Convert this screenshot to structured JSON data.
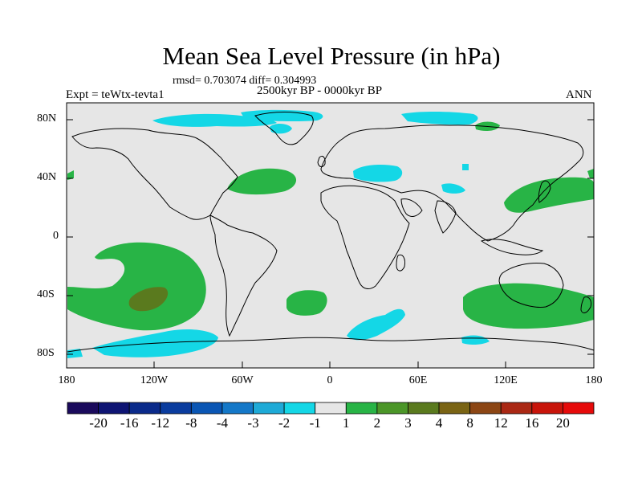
{
  "header": {
    "title": "Mean Sea Level Pressure (in hPa)",
    "stats": "rmsd= 0.703074 diff= 0.304993",
    "period": "2500kyr BP - 0000kyr BP",
    "experiment": "Expt = teWtx-tevta1",
    "season": "ANN"
  },
  "axes": {
    "y_ticks": [
      "80N",
      "40N",
      "0",
      "40S",
      "80S"
    ],
    "x_ticks": [
      "180",
      "120W",
      "60W",
      "0",
      "60E",
      "120E",
      "180"
    ]
  },
  "colorbar": {
    "labels": [
      "-20",
      "-16",
      "-12",
      "-8",
      "-4",
      "-3",
      "-2",
      "-1",
      "1",
      "2",
      "3",
      "4",
      "8",
      "12",
      "16",
      "20"
    ],
    "colors": [
      "#1a0a5c",
      "#0e1473",
      "#0a2a8a",
      "#0a3c9e",
      "#0a56b4",
      "#1478c8",
      "#1eaad7",
      "#14d7e6",
      "#e6e6e6",
      "#28b446",
      "#4b9628",
      "#5a7a1e",
      "#7a6414",
      "#8c4614",
      "#aa2814",
      "#c8140a",
      "#e60a0a"
    ]
  },
  "colors": {
    "ocean_bg": "#e6e6e6",
    "positive_1": "#28b446",
    "positive_2": "#5a7a1e",
    "negative_1": "#14d7e6"
  }
}
